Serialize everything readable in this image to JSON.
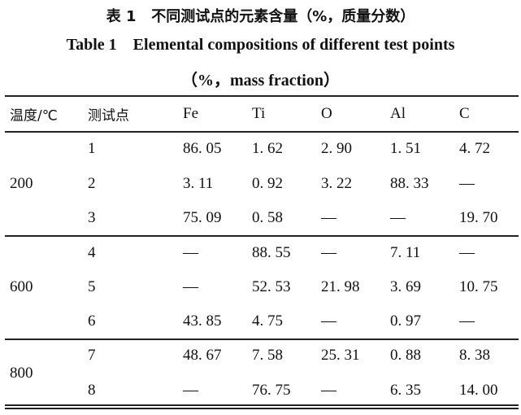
{
  "caption": {
    "zh": "表 1   不同测试点的元素含量（%，质量分数）",
    "en": "Table 1    Elemental compositions of different test points",
    "unit": "（%，mass fraction）"
  },
  "table": {
    "headers": [
      "温度/℃",
      "测试点",
      "Fe",
      "Ti",
      "O",
      "Al",
      "C"
    ],
    "groups": [
      {
        "temperature": "200",
        "rows": [
          [
            "1",
            "86. 05",
            "1. 62",
            "2. 90",
            "1. 51",
            "4. 72"
          ],
          [
            "2",
            "3. 11",
            "0. 92",
            "3. 22",
            "88. 33",
            "—"
          ],
          [
            "3",
            "75. 09",
            "0. 58",
            "—",
            "—",
            "19. 70"
          ]
        ]
      },
      {
        "temperature": "600",
        "rows": [
          [
            "4",
            "—",
            "88. 55",
            "—",
            "7. 11",
            "—"
          ],
          [
            "5",
            "—",
            "52. 53",
            "21. 98",
            "3. 69",
            "10. 75"
          ],
          [
            "6",
            "43. 85",
            "4. 75",
            "—",
            "0. 97",
            "—"
          ]
        ]
      },
      {
        "temperature": "800",
        "rows": [
          [
            "7",
            "48. 67",
            "7. 58",
            "25. 31",
            "0. 88",
            "8. 38"
          ],
          [
            "8",
            "—",
            "76. 75",
            "—",
            "6. 35",
            "14. 00"
          ]
        ]
      }
    ]
  }
}
